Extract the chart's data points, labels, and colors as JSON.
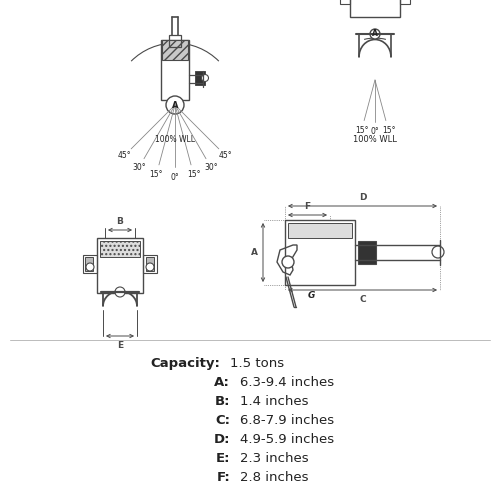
{
  "background_color": "#ffffff",
  "line_color": "#4a4a4a",
  "text_color": "#222222",
  "capacity_label": "Capacity:",
  "capacity_value": "1.5 tons",
  "specs": [
    {
      "label": "A:",
      "value": "6.3-9.4 inches"
    },
    {
      "label": "B:",
      "value": "1.4 inches"
    },
    {
      "label": "C:",
      "value": "6.8-7.9 inches"
    },
    {
      "label": "D:",
      "value": "4.9-5.9 inches"
    },
    {
      "label": "E:",
      "value": "2.3 inches"
    },
    {
      "label": "F:",
      "value": "2.8 inches"
    }
  ],
  "wll_left": "100% WLL",
  "wll_right": "100% WLL",
  "fig_width": 5.0,
  "fig_height": 5.0,
  "dpi": 100
}
